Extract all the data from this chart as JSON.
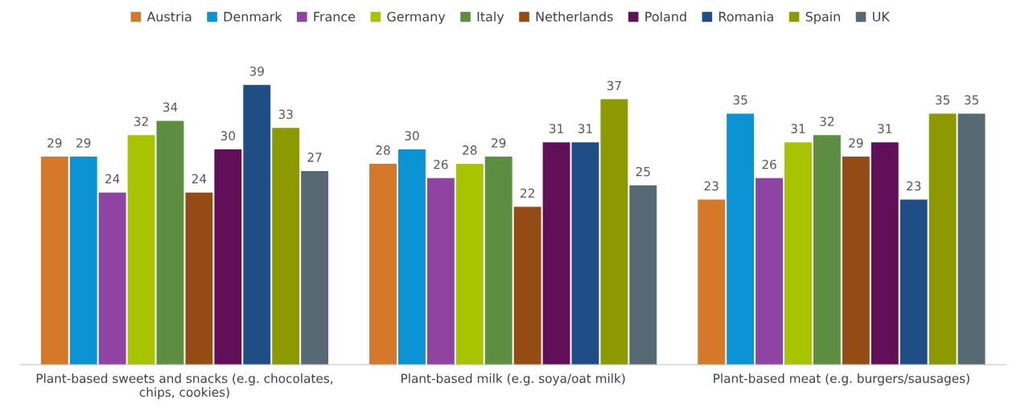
{
  "chart_data": {
    "type": "bar",
    "categories": [
      "Plant-based sweets and snacks (e.g. chocolates,\nchips, cookies)",
      "Plant-based milk (e.g. soya/oat milk)",
      "Plant-based meat (e.g. burgers/sausages)"
    ],
    "series": [
      {
        "name": "Austria",
        "color": "#d4782a",
        "values": [
          29,
          28,
          23
        ]
      },
      {
        "name": "Denmark",
        "color": "#0a94d4",
        "values": [
          29,
          30,
          35
        ]
      },
      {
        "name": "France",
        "color": "#8e44a0",
        "values": [
          24,
          26,
          26
        ]
      },
      {
        "name": "Germany",
        "color": "#a8c400",
        "values": [
          32,
          28,
          31
        ]
      },
      {
        "name": "Italy",
        "color": "#5e8e42",
        "values": [
          34,
          29,
          32
        ]
      },
      {
        "name": "Netherlands",
        "color": "#944c14",
        "values": [
          24,
          22,
          29
        ]
      },
      {
        "name": "Poland",
        "color": "#620f5a",
        "values": [
          30,
          31,
          31
        ]
      },
      {
        "name": "Romania",
        "color": "#1f4e87",
        "values": [
          39,
          31,
          23
        ]
      },
      {
        "name": "Spain",
        "color": "#8c9a00",
        "values": [
          33,
          37,
          35
        ]
      },
      {
        "name": "UK",
        "color": "#566873",
        "values": [
          27,
          25,
          35
        ]
      }
    ],
    "data_labels": true,
    "legend": "top",
    "grid": false,
    "tick_labels": "x"
  }
}
